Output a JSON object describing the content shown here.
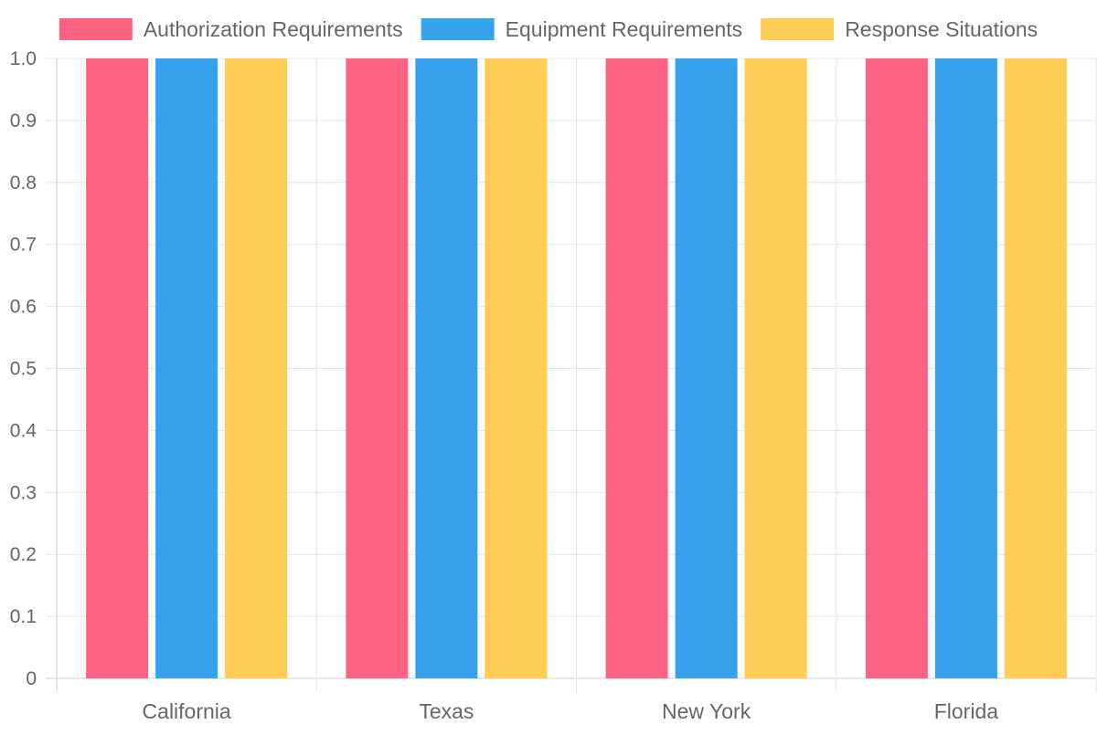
{
  "chart_data": {
    "type": "bar",
    "title": "",
    "xlabel": "",
    "ylabel": "",
    "categories": [
      "California",
      "Texas",
      "New York",
      "Florida"
    ],
    "series": [
      {
        "name": "Authorization Requirements",
        "color": "#ff6384",
        "values": [
          1,
          1,
          1,
          1
        ]
      },
      {
        "name": "Equipment Requirements",
        "color": "#36a2eb",
        "values": [
          1,
          1,
          1,
          1
        ]
      },
      {
        "name": "Response Situations",
        "color": "#ffcd56",
        "values": [
          1,
          1,
          1,
          1
        ]
      }
    ],
    "ylim": [
      0,
      1
    ],
    "yticks": [
      "0",
      "0.1",
      "0.2",
      "0.3",
      "0.4",
      "0.5",
      "0.6",
      "0.7",
      "0.8",
      "0.9",
      "1.0"
    ],
    "grid": true,
    "legend_position": "top-center"
  }
}
